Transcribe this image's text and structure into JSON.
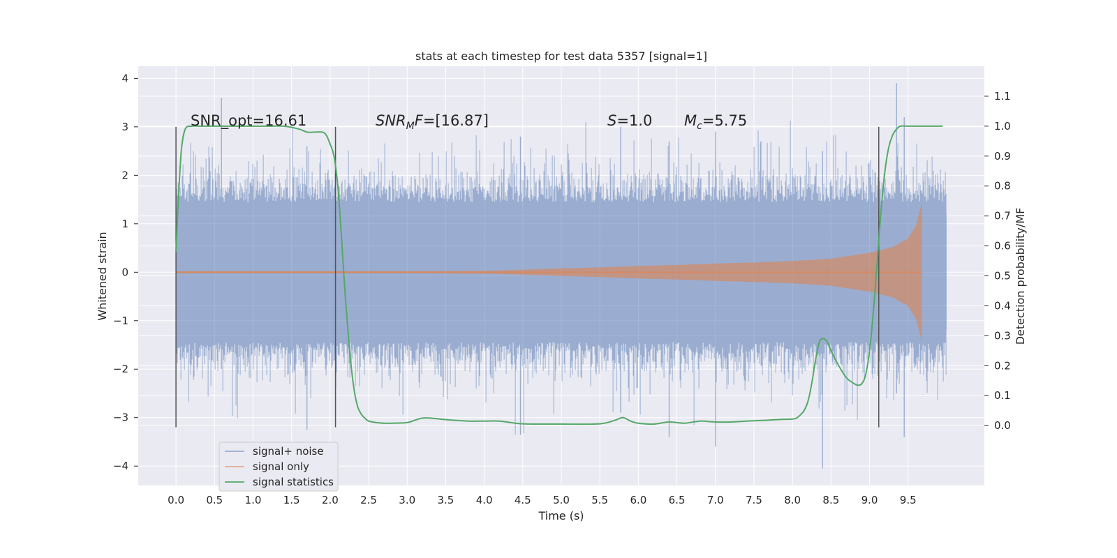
{
  "chart_data": {
    "type": "line",
    "title": "stats at each timestep for test data 5357 [signal=1]",
    "xlabel": "Time (s)",
    "ylabel": "Whitened strain",
    "ylabel_right": "Detection probability/MF",
    "xlim": [
      -0.49,
      10.49
    ],
    "ylim": [
      -4.4,
      4.25
    ],
    "ylim_right": [
      -0.2,
      1.2
    ],
    "x_ticks": [
      "0.0",
      "0.5",
      "1.0",
      "1.5",
      "2.0",
      "2.5",
      "3.0",
      "3.5",
      "4.0",
      "4.5",
      "5.0",
      "5.5",
      "6.0",
      "6.5",
      "7.0",
      "7.5",
      "8.0",
      "8.5",
      "9.0",
      "9.5"
    ],
    "y_ticks": [
      "4",
      "3",
      "2",
      "1",
      "0",
      "−1",
      "−2",
      "−3",
      "−4"
    ],
    "y_ticks_right": [
      "1.1",
      "1.0",
      "0.9",
      "0.8",
      "0.7",
      "0.6",
      "0.5",
      "0.4",
      "0.3",
      "0.2",
      "0.1",
      "0.0"
    ],
    "grid": true,
    "legend_position": "lower-left",
    "colors": {
      "noise": "#4c72b0",
      "signal": "#dd8452",
      "stats": "#55a868",
      "marker": "#555555",
      "background": "#eaeaf2",
      "grid": "#ffffff"
    },
    "annotations": {
      "snr_opt": "SNR_opt=16.61",
      "snr_mf_sym": "SNR",
      "snr_mf_sub": "M",
      "snr_mf_rest": "F",
      "snr_mf_value": "=[16.87]",
      "s_sym": "S",
      "s_value": "=1.0",
      "mc_sym": "M",
      "mc_sub": "c",
      "mc_value": "=5.75"
    },
    "series": [
      {
        "name": "signal+ noise",
        "kind": "noise envelope",
        "x_range": [
          0.0,
          10.0
        ],
        "y_typical": [
          -1.7,
          1.7
        ],
        "y_extremes": [
          -4.05,
          3.9
        ]
      },
      {
        "name": "signal only",
        "kind": "chirp envelope",
        "x": [
          0.0,
          1.0,
          2.0,
          3.0,
          4.0,
          4.5,
          5.0,
          5.5,
          6.0,
          6.5,
          7.0,
          7.5,
          8.0,
          8.5,
          9.0,
          9.3,
          9.5,
          9.6,
          9.65,
          9.68
        ],
        "amplitude": [
          0.02,
          0.02,
          0.02,
          0.02,
          0.03,
          0.05,
          0.08,
          0.1,
          0.13,
          0.15,
          0.18,
          0.2,
          0.23,
          0.28,
          0.4,
          0.52,
          0.7,
          0.95,
          1.25,
          1.45
        ]
      },
      {
        "name": "signal statistics",
        "axis": "right",
        "x": [
          0.0,
          0.03,
          0.07,
          0.12,
          0.2,
          0.3,
          0.5,
          0.8,
          1.0,
          1.2,
          1.4,
          1.6,
          1.7,
          1.8,
          1.9,
          1.95,
          2.0,
          2.05,
          2.1,
          2.15,
          2.2,
          2.25,
          2.3,
          2.35,
          2.4,
          2.45,
          2.5,
          2.6,
          2.7,
          2.8,
          3.0,
          3.1,
          3.2,
          3.3,
          3.5,
          3.8,
          4.0,
          4.2,
          4.5,
          5.0,
          5.5,
          5.7,
          5.8,
          5.9,
          6.0,
          6.2,
          6.4,
          6.6,
          6.8,
          7.0,
          7.2,
          7.4,
          7.6,
          7.8,
          8.0,
          8.05,
          8.1,
          8.15,
          8.2,
          8.25,
          8.3,
          8.35,
          8.4,
          8.45,
          8.5,
          8.6,
          8.7,
          8.8,
          8.85,
          8.9,
          8.95,
          9.0,
          9.05,
          9.1,
          9.15,
          9.2,
          9.25,
          9.3,
          9.35,
          9.4,
          9.5,
          9.6,
          9.8,
          9.95
        ],
        "y": [
          0.58,
          0.75,
          0.92,
          0.99,
          1.0,
          1.0,
          1.0,
          1.0,
          1.0,
          1.0,
          1.0,
          0.99,
          0.98,
          0.98,
          0.98,
          0.97,
          0.94,
          0.9,
          0.8,
          0.62,
          0.42,
          0.26,
          0.14,
          0.07,
          0.04,
          0.025,
          0.015,
          0.01,
          0.008,
          0.008,
          0.01,
          0.018,
          0.025,
          0.025,
          0.02,
          0.015,
          0.015,
          0.015,
          0.006,
          0.005,
          0.006,
          0.018,
          0.027,
          0.015,
          0.008,
          0.005,
          0.012,
          0.008,
          0.015,
          0.012,
          0.012,
          0.015,
          0.017,
          0.02,
          0.022,
          0.025,
          0.035,
          0.05,
          0.08,
          0.14,
          0.22,
          0.28,
          0.29,
          0.28,
          0.25,
          0.2,
          0.16,
          0.14,
          0.135,
          0.14,
          0.17,
          0.25,
          0.38,
          0.55,
          0.72,
          0.85,
          0.93,
          0.97,
          0.99,
          1.0,
          1.0,
          1.0,
          1.0,
          1.0
        ]
      }
    ],
    "vertical_markers": [
      0.0,
      2.07,
      9.12
    ]
  }
}
